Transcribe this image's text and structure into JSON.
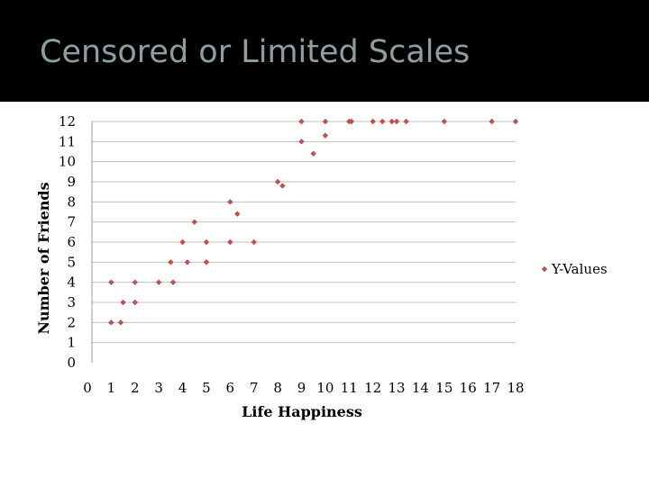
{
  "slide": {
    "title": "Censored or Limited Scales"
  },
  "colors": {
    "title_bar": "#000000",
    "title_text": "#8e9ea1",
    "marker": "#c0504d",
    "grid": "#c0c0c0"
  },
  "chart_data": {
    "type": "scatter",
    "title": "",
    "xlabel": "Life Happiness",
    "ylabel": "Number of Friends",
    "xlim": [
      0,
      18
    ],
    "ylim": [
      0,
      12
    ],
    "x_ticks": [
      0,
      1,
      2,
      3,
      4,
      5,
      6,
      7,
      8,
      9,
      10,
      11,
      12,
      13,
      14,
      15,
      16,
      17,
      18
    ],
    "y_ticks": [
      0,
      1,
      2,
      3,
      4,
      5,
      6,
      7,
      8,
      9,
      10,
      11,
      12
    ],
    "grid": "horizontal",
    "legend_position": "right",
    "series": [
      {
        "name": "Y-Values",
        "marker": "diamond",
        "color": "#c0504d",
        "points": [
          {
            "x": 1.0,
            "y": 2
          },
          {
            "x": 1.4,
            "y": 2
          },
          {
            "x": 1.0,
            "y": 4
          },
          {
            "x": 1.5,
            "y": 3
          },
          {
            "x": 2.0,
            "y": 3
          },
          {
            "x": 2.0,
            "y": 4
          },
          {
            "x": 3.0,
            "y": 4
          },
          {
            "x": 3.6,
            "y": 4
          },
          {
            "x": 3.5,
            "y": 5
          },
          {
            "x": 4.0,
            "y": 6
          },
          {
            "x": 4.2,
            "y": 5
          },
          {
            "x": 4.5,
            "y": 7
          },
          {
            "x": 5.0,
            "y": 5
          },
          {
            "x": 5.0,
            "y": 5
          },
          {
            "x": 5.0,
            "y": 6
          },
          {
            "x": 6.0,
            "y": 6
          },
          {
            "x": 6.0,
            "y": 8
          },
          {
            "x": 6.3,
            "y": 7.4
          },
          {
            "x": 7.0,
            "y": 6
          },
          {
            "x": 8.0,
            "y": 9
          },
          {
            "x": 8.2,
            "y": 8.8
          },
          {
            "x": 9.0,
            "y": 11
          },
          {
            "x": 9.0,
            "y": 12
          },
          {
            "x": 9.5,
            "y": 10.4
          },
          {
            "x": 10.0,
            "y": 11.3
          },
          {
            "x": 10.0,
            "y": 12
          },
          {
            "x": 11.0,
            "y": 12
          },
          {
            "x": 11.1,
            "y": 12
          },
          {
            "x": 12.0,
            "y": 12
          },
          {
            "x": 12.4,
            "y": 12
          },
          {
            "x": 12.8,
            "y": 12
          },
          {
            "x": 13.0,
            "y": 12
          },
          {
            "x": 13.4,
            "y": 12
          },
          {
            "x": 15.0,
            "y": 12
          },
          {
            "x": 17.0,
            "y": 12
          },
          {
            "x": 18.0,
            "y": 12
          }
        ]
      }
    ]
  }
}
